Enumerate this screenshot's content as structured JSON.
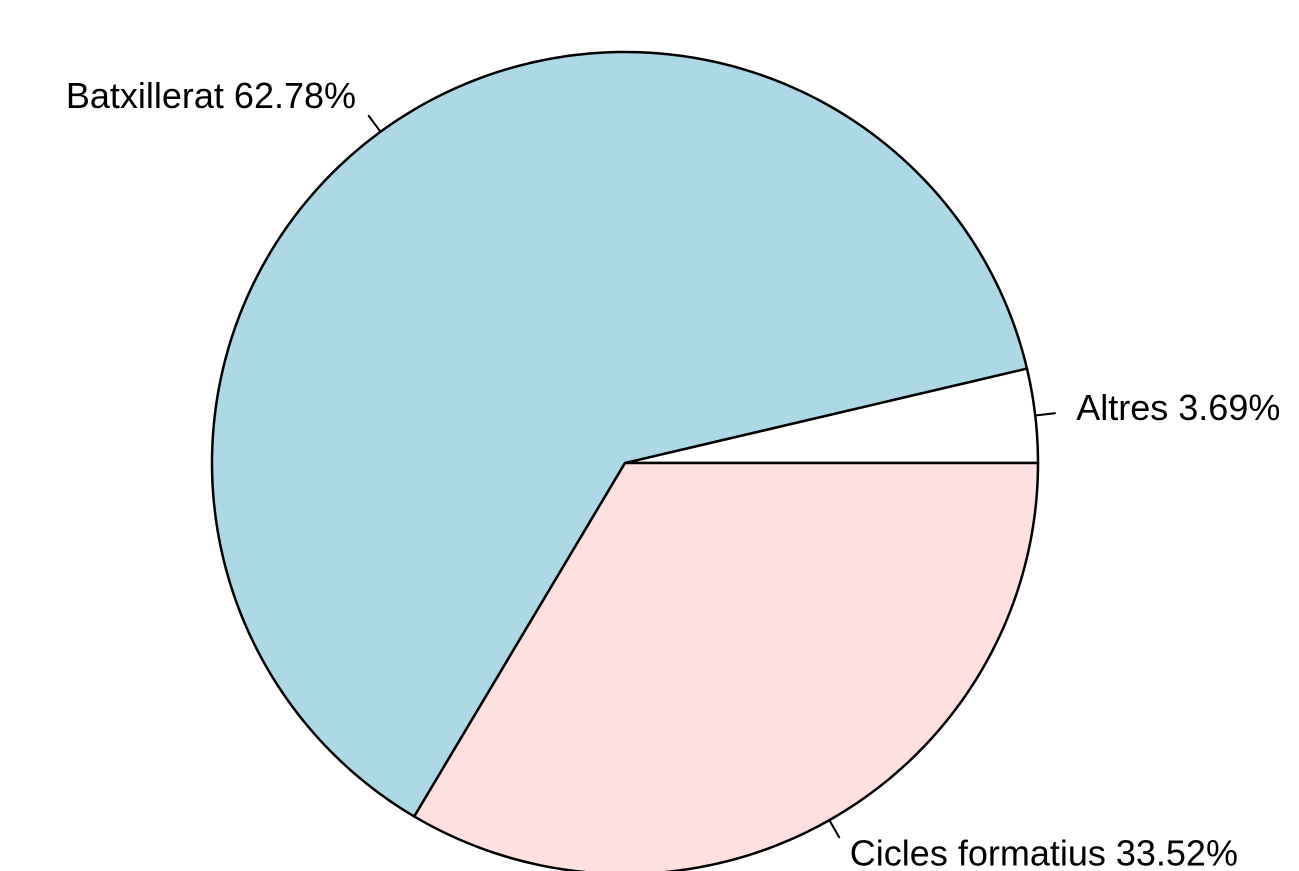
{
  "chart_data": {
    "type": "pie",
    "direction": "counterclockwise",
    "start_angle_deg": 0,
    "slices": [
      {
        "label": "Altres",
        "value": 3.69,
        "label_text": "Altres 3.69%",
        "color": "#ffffff"
      },
      {
        "label": "Batxillerat",
        "value": 62.78,
        "label_text": "Batxillerat 62.78%",
        "color": "#add8e6"
      },
      {
        "label": "Cicles formatius",
        "value": 33.52,
        "label_text": "Cicles formatius 33.52%",
        "color": "#ffe0e0"
      }
    ],
    "outline_color": "#000000",
    "legend": "none"
  }
}
